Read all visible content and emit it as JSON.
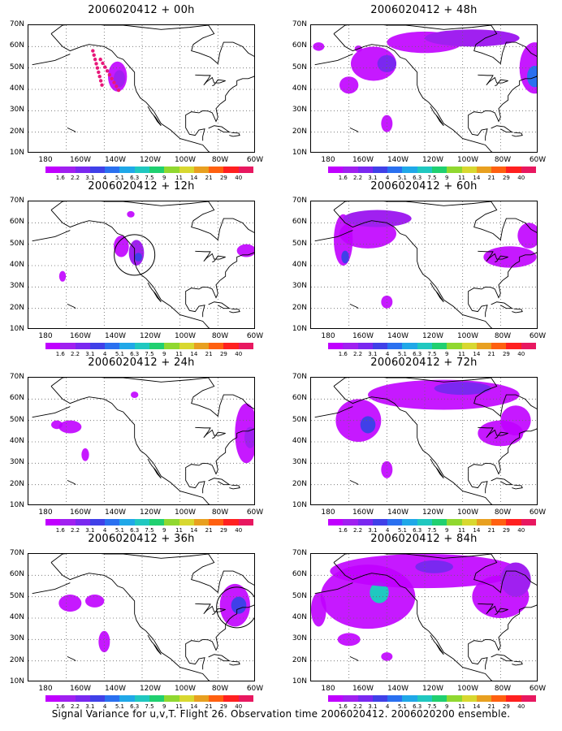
{
  "panels": [
    {
      "title": "2006020412 + 00h"
    },
    {
      "title": "2006020412 + 48h"
    },
    {
      "title": "2006020412 + 12h"
    },
    {
      "title": "2006020412 + 60h"
    },
    {
      "title": "2006020412 + 24h"
    },
    {
      "title": "2006020412 + 72h"
    },
    {
      "title": "2006020412 + 36h"
    },
    {
      "title": "2006020412 + 84h"
    }
  ],
  "y_ticks": [
    "70N",
    "60N",
    "50N",
    "40N",
    "30N",
    "20N",
    "10N"
  ],
  "x_ticks": [
    "180",
    "160W",
    "140W",
    "120W",
    "100W",
    "80W",
    "60W"
  ],
  "colorbar": {
    "labels": [
      "1.6",
      "2.2",
      "3.1",
      "4",
      "5.1",
      "6.3",
      "7.5",
      "9",
      "11",
      "14",
      "21",
      "29",
      "40"
    ],
    "colors": [
      "#c000ff",
      "#a020f0",
      "#7a28f0",
      "#4040e8",
      "#2a70f0",
      "#20a8e8",
      "#20c8c0",
      "#20d070",
      "#90d830",
      "#d8d830",
      "#e8a020",
      "#ff6010",
      "#ff2020",
      "#e81860"
    ]
  },
  "caption": "Signal Variance for u,v,T. Flight 26. Observation time 2006020412. 2006020200 ensemble."
}
